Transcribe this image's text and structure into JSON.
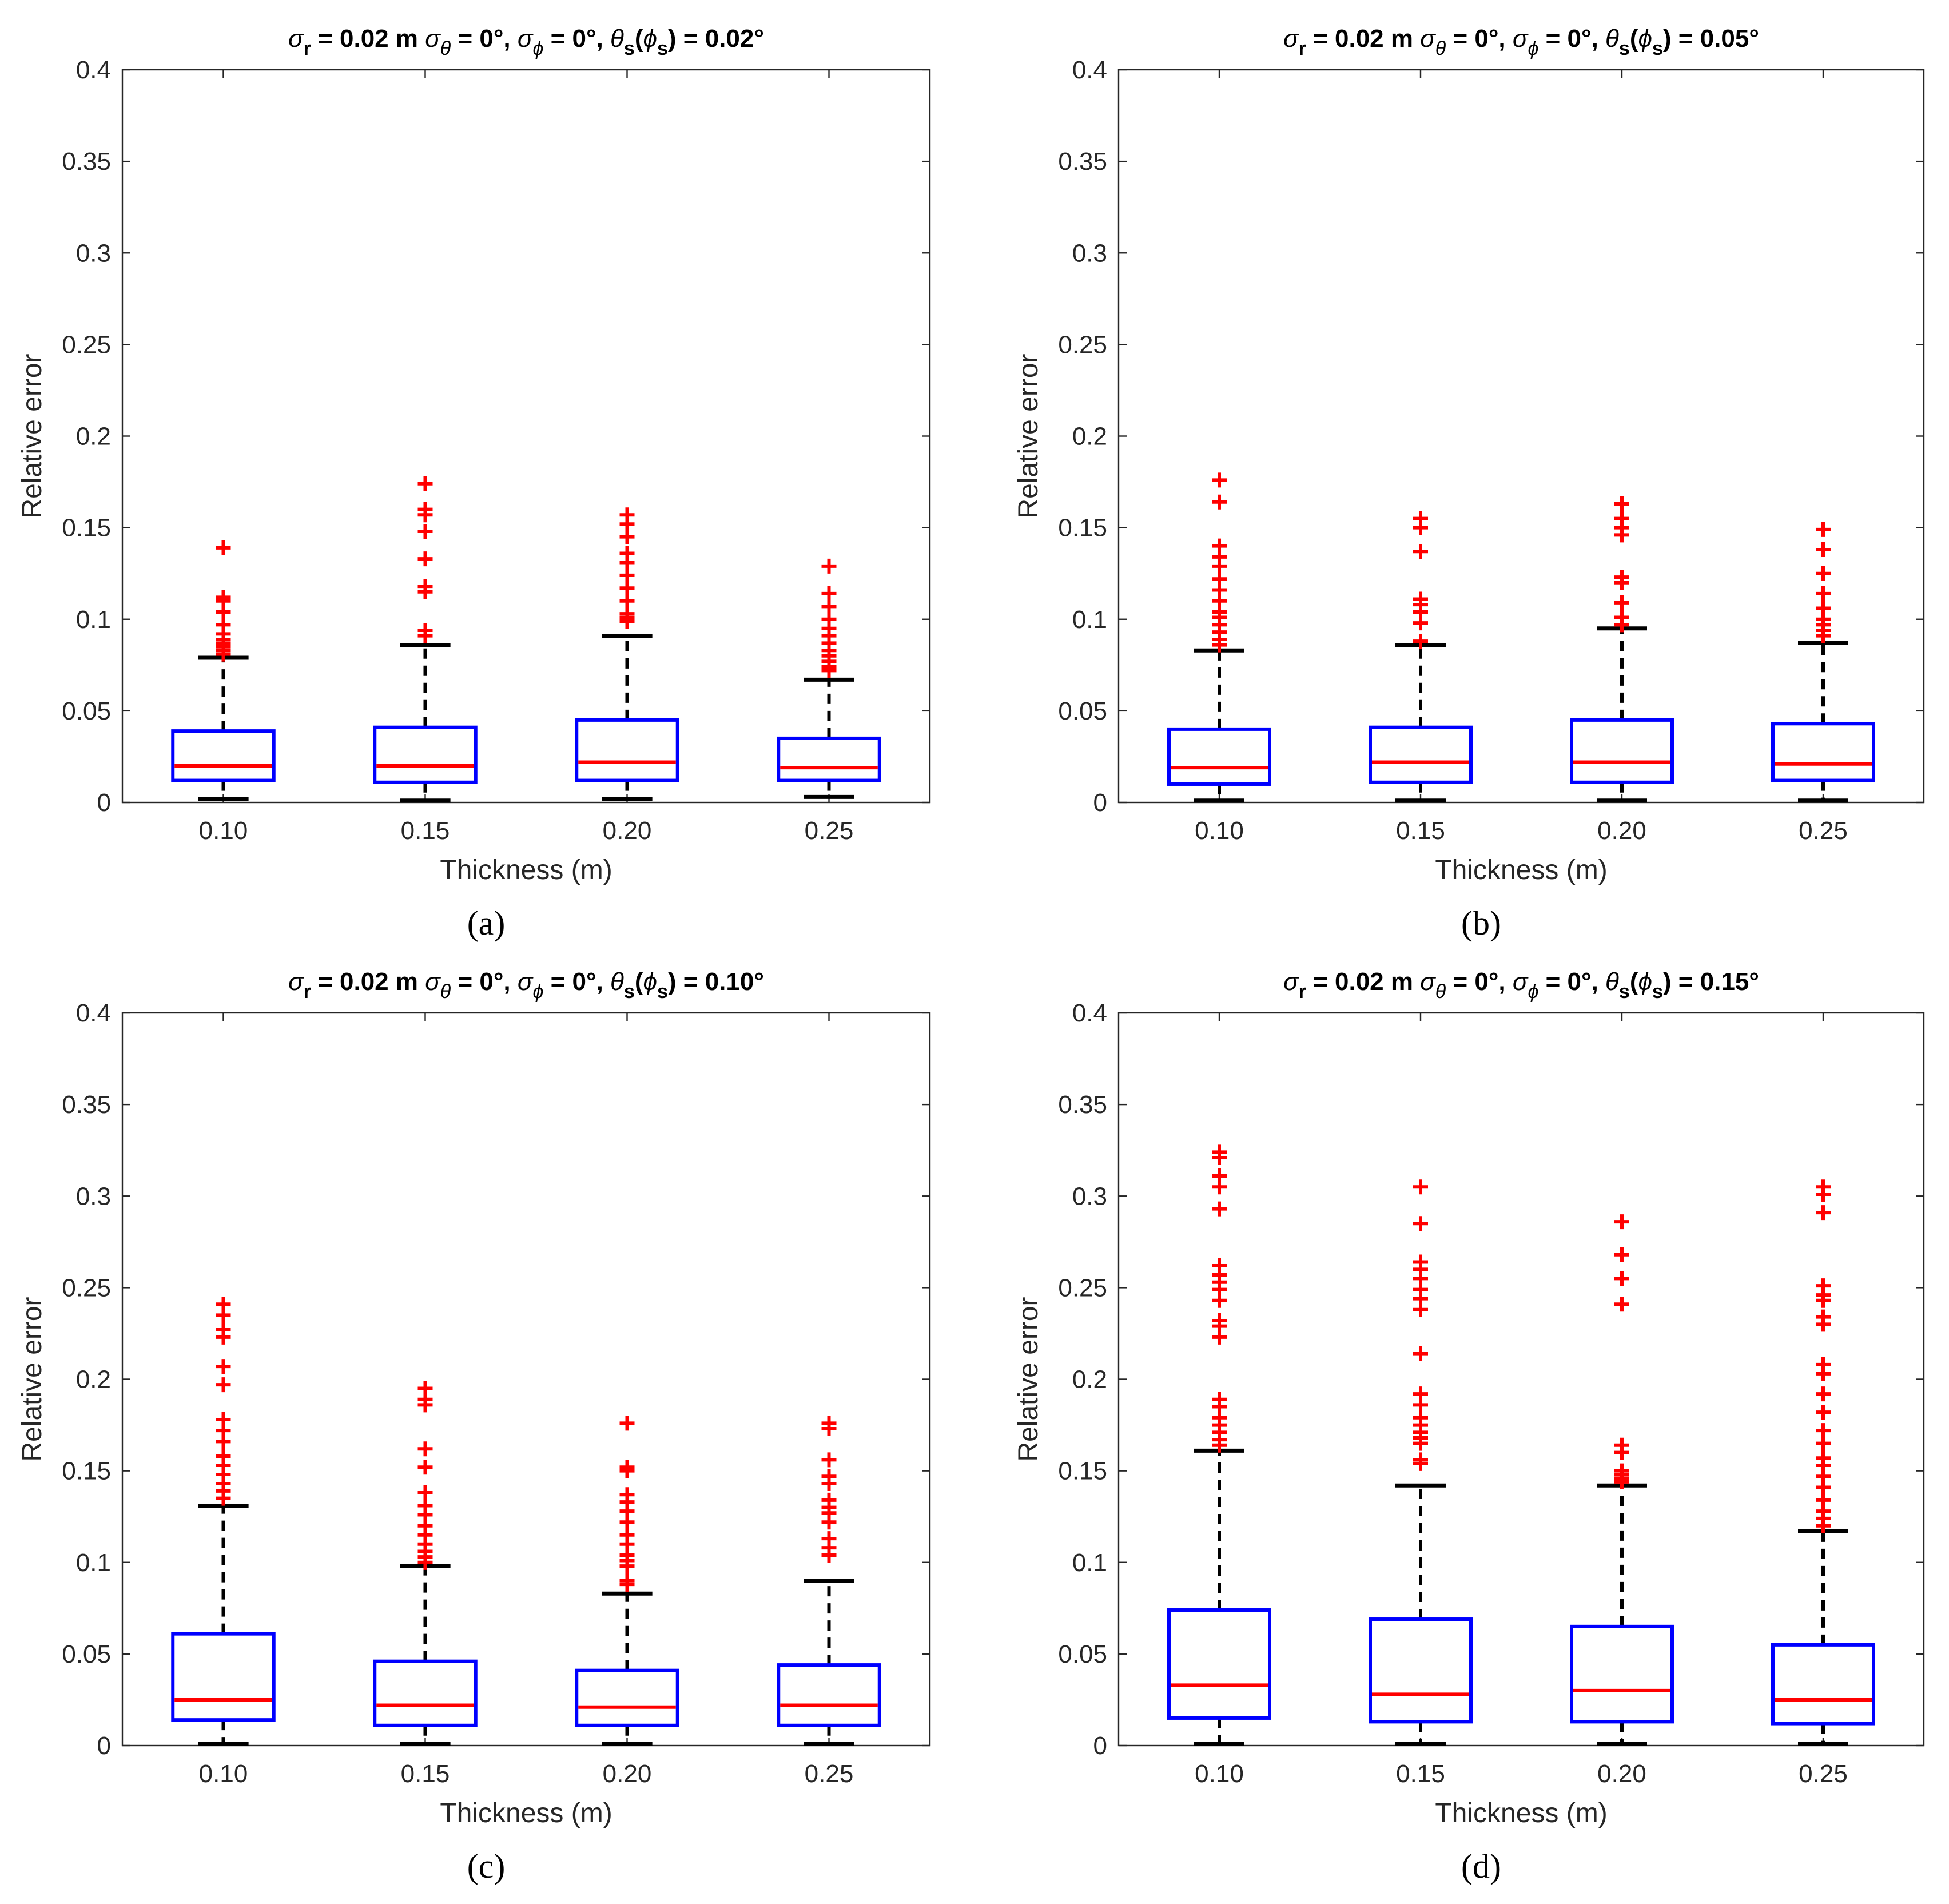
{
  "figure": {
    "colors": {
      "box": "#0000ff",
      "median": "#ff0000",
      "whisker": "#000000",
      "outlier": "#ff0000",
      "axis": "#262626"
    }
  },
  "chart_data": [
    {
      "panel_label": "(a)",
      "type": "box",
      "title": {
        "sr": "r",
        "s_value": " = 0.02 m ",
        "t_sym": "θ",
        "t_value": " = 0°, ",
        "p_sym": "ϕ",
        "p_value": " = 0°, ",
        "ts_sub": "s",
        "ps_sym": "ϕ",
        "ps_sub": "s",
        "value": ") = 0.02°"
      },
      "xlabel": "Thickness (m)",
      "ylabel": "Relative error",
      "ylim": [
        0,
        0.4
      ],
      "yticks": [
        "0",
        "0.05",
        "0.1",
        "0.15",
        "0.2",
        "0.25",
        "0.3",
        "0.35",
        "0.4"
      ],
      "categories": [
        "0.10",
        "0.15",
        "0.20",
        "0.25"
      ],
      "boxes": [
        {
          "q1": 0.012,
          "median": 0.02,
          "q3": 0.039,
          "wlo": 0.002,
          "whi": 0.079,
          "outliers": [
            0.081,
            0.083,
            0.085,
            0.087,
            0.089,
            0.092,
            0.097,
            0.104,
            0.11,
            0.112,
            0.139
          ]
        },
        {
          "q1": 0.011,
          "median": 0.02,
          "q3": 0.041,
          "wlo": 0.001,
          "whi": 0.086,
          "outliers": [
            0.091,
            0.094,
            0.115,
            0.118,
            0.133,
            0.148,
            0.157,
            0.16,
            0.174
          ]
        },
        {
          "q1": 0.012,
          "median": 0.022,
          "q3": 0.045,
          "wlo": 0.002,
          "whi": 0.091,
          "outliers": [
            0.099,
            0.101,
            0.103,
            0.11,
            0.117,
            0.124,
            0.131,
            0.136,
            0.145,
            0.152,
            0.157
          ]
        },
        {
          "q1": 0.012,
          "median": 0.019,
          "q3": 0.035,
          "wlo": 0.003,
          "whi": 0.067,
          "outliers": [
            0.072,
            0.074,
            0.077,
            0.08,
            0.083,
            0.087,
            0.091,
            0.095,
            0.1,
            0.107,
            0.114,
            0.129
          ]
        }
      ]
    },
    {
      "panel_label": "(b)",
      "type": "box",
      "title": {
        "sr": "r",
        "s_value": " = 0.02 m ",
        "t_sym": "θ",
        "t_value": " = 0°, ",
        "p_sym": "ϕ",
        "p_value": " = 0°, ",
        "ts_sub": "s",
        "ps_sym": "ϕ",
        "ps_sub": "s",
        "value": ") = 0.05°"
      },
      "xlabel": "Thickness (m)",
      "ylabel": "Relative error",
      "ylim": [
        0,
        0.4
      ],
      "yticks": [
        "0",
        "0.05",
        "0.1",
        "0.15",
        "0.2",
        "0.25",
        "0.3",
        "0.35",
        "0.4"
      ],
      "categories": [
        "0.10",
        "0.15",
        "0.20",
        "0.25"
      ],
      "boxes": [
        {
          "q1": 0.01,
          "median": 0.019,
          "q3": 0.04,
          "wlo": 0.001,
          "whi": 0.083,
          "outliers": [
            0.086,
            0.089,
            0.093,
            0.097,
            0.101,
            0.104,
            0.11,
            0.116,
            0.122,
            0.129,
            0.134,
            0.14,
            0.164,
            0.176
          ]
        },
        {
          "q1": 0.011,
          "median": 0.022,
          "q3": 0.041,
          "wlo": 0.001,
          "whi": 0.086,
          "outliers": [
            0.088,
            0.098,
            0.104,
            0.108,
            0.111,
            0.137,
            0.15,
            0.155
          ]
        },
        {
          "q1": 0.011,
          "median": 0.022,
          "q3": 0.045,
          "wlo": 0.001,
          "whi": 0.095,
          "outliers": [
            0.097,
            0.101,
            0.109,
            0.12,
            0.123,
            0.146,
            0.15,
            0.155,
            0.163
          ]
        },
        {
          "q1": 0.012,
          "median": 0.021,
          "q3": 0.043,
          "wlo": 0.001,
          "whi": 0.087,
          "outliers": [
            0.091,
            0.094,
            0.097,
            0.1,
            0.106,
            0.114,
            0.125,
            0.138,
            0.149
          ]
        }
      ]
    },
    {
      "panel_label": "(c)",
      "type": "box",
      "title": {
        "sr": "r",
        "s_value": " = 0.02 m ",
        "t_sym": "θ",
        "t_value": " = 0°, ",
        "p_sym": "ϕ",
        "p_value": " = 0°, ",
        "ts_sub": "s",
        "ps_sym": "ϕ",
        "ps_sub": "s",
        "value": ") = 0.10°"
      },
      "xlabel": "Thickness (m)",
      "ylabel": "Relative error",
      "ylim": [
        0,
        0.4
      ],
      "yticks": [
        "0",
        "0.05",
        "0.1",
        "0.15",
        "0.2",
        "0.25",
        "0.3",
        "0.35",
        "0.4"
      ],
      "categories": [
        "0.10",
        "0.15",
        "0.20",
        "0.25"
      ],
      "boxes": [
        {
          "q1": 0.014,
          "median": 0.025,
          "q3": 0.061,
          "wlo": 0.001,
          "whi": 0.131,
          "outliers": [
            0.135,
            0.139,
            0.143,
            0.148,
            0.153,
            0.158,
            0.166,
            0.172,
            0.178,
            0.197,
            0.207,
            0.223,
            0.227,
            0.235,
            0.241
          ]
        },
        {
          "q1": 0.011,
          "median": 0.022,
          "q3": 0.046,
          "wlo": 0.001,
          "whi": 0.098,
          "outliers": [
            0.1,
            0.103,
            0.106,
            0.11,
            0.115,
            0.12,
            0.126,
            0.131,
            0.138,
            0.152,
            0.162,
            0.186,
            0.189,
            0.195
          ]
        },
        {
          "q1": 0.011,
          "median": 0.021,
          "q3": 0.041,
          "wlo": 0.001,
          "whi": 0.083,
          "outliers": [
            0.088,
            0.09,
            0.098,
            0.101,
            0.104,
            0.11,
            0.115,
            0.122,
            0.128,
            0.133,
            0.137,
            0.15,
            0.152,
            0.176
          ]
        },
        {
          "q1": 0.011,
          "median": 0.022,
          "q3": 0.044,
          "wlo": 0.001,
          "whi": 0.09,
          "outliers": [
            0.104,
            0.108,
            0.113,
            0.122,
            0.127,
            0.13,
            0.134,
            0.143,
            0.147,
            0.156,
            0.173,
            0.176
          ]
        }
      ]
    },
    {
      "panel_label": "(d)",
      "type": "box",
      "title": {
        "sr": "r",
        "s_value": " = 0.02 m ",
        "t_sym": "θ",
        "t_value": " = 0°, ",
        "p_sym": "ϕ",
        "p_value": " = 0°, ",
        "ts_sub": "s",
        "ps_sym": "ϕ",
        "ps_sub": "s",
        "value": ") = 0.15°"
      },
      "xlabel": "Thickness (m)",
      "ylabel": "Relative error",
      "ylim": [
        0,
        0.4
      ],
      "yticks": [
        "0",
        "0.05",
        "0.1",
        "0.15",
        "0.2",
        "0.25",
        "0.3",
        "0.35",
        "0.4"
      ],
      "categories": [
        "0.10",
        "0.15",
        "0.20",
        "0.25"
      ],
      "boxes": [
        {
          "q1": 0.015,
          "median": 0.033,
          "q3": 0.074,
          "wlo": 0.001,
          "whi": 0.161,
          "outliers": [
            0.164,
            0.167,
            0.171,
            0.175,
            0.179,
            0.185,
            0.189,
            0.223,
            0.229,
            0.232,
            0.243,
            0.249,
            0.253,
            0.257,
            0.262,
            0.293,
            0.305,
            0.311,
            0.321,
            0.324
          ]
        },
        {
          "q1": 0.013,
          "median": 0.028,
          "q3": 0.069,
          "wlo": 0.001,
          "whi": 0.142,
          "outliers": [
            0.154,
            0.156,
            0.165,
            0.168,
            0.171,
            0.175,
            0.179,
            0.186,
            0.192,
            0.214,
            0.238,
            0.244,
            0.249,
            0.255,
            0.26,
            0.264,
            0.285,
            0.305
          ]
        },
        {
          "q1": 0.013,
          "median": 0.03,
          "q3": 0.065,
          "wlo": 0.001,
          "whi": 0.142,
          "outliers": [
            0.144,
            0.146,
            0.148,
            0.15,
            0.16,
            0.164,
            0.241,
            0.255,
            0.268,
            0.286
          ]
        },
        {
          "q1": 0.012,
          "median": 0.025,
          "q3": 0.055,
          "wlo": 0.001,
          "whi": 0.117,
          "outliers": [
            0.12,
            0.124,
            0.128,
            0.134,
            0.141,
            0.147,
            0.153,
            0.157,
            0.165,
            0.172,
            0.182,
            0.192,
            0.203,
            0.208,
            0.23,
            0.234,
            0.243,
            0.246,
            0.251,
            0.291,
            0.301,
            0.305
          ]
        }
      ]
    }
  ]
}
